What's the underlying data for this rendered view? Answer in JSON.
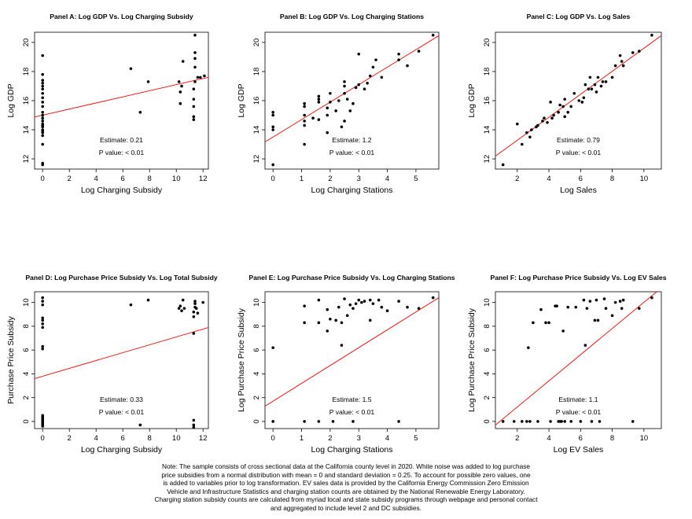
{
  "chart_data": [
    {
      "type": "scatter",
      "title": "Panel A: Log GDP Vs. Log Charging Subsidy",
      "xlabel": "Log Charging Subsidy",
      "ylabel": "Log GDP",
      "xlim": [
        -0.6,
        12.4
      ],
      "ylim": [
        11.3,
        20.7
      ],
      "xticks": [
        0,
        2,
        4,
        6,
        8,
        10,
        12
      ],
      "yticks": [
        12,
        14,
        16,
        18,
        20
      ],
      "estimate_label": "Estimate:  0.21",
      "pvalue_label": "P value: < 0.01",
      "line": {
        "intercept": 15.0,
        "slope": 0.21
      },
      "points": [
        [
          0,
          11.6
        ],
        [
          0,
          11.7
        ],
        [
          0,
          13.0
        ],
        [
          0,
          13.6
        ],
        [
          0,
          13.8
        ],
        [
          0,
          13.9
        ],
        [
          0,
          14.0
        ],
        [
          0,
          14.2
        ],
        [
          0,
          14.3
        ],
        [
          0,
          14.4
        ],
        [
          0,
          14.6
        ],
        [
          0,
          14.8
        ],
        [
          0,
          15.0
        ],
        [
          0,
          15.2
        ],
        [
          0,
          15.6
        ],
        [
          0,
          15.9
        ],
        [
          0,
          16.2
        ],
        [
          0,
          16.5
        ],
        [
          0,
          16.8
        ],
        [
          0,
          17.0
        ],
        [
          0,
          17.2
        ],
        [
          0,
          17.4
        ],
        [
          0,
          17.8
        ],
        [
          0,
          19.1
        ],
        [
          6.6,
          18.2
        ],
        [
          7.3,
          15.2
        ],
        [
          7.9,
          17.3
        ],
        [
          10.2,
          17.3
        ],
        [
          10.3,
          15.8
        ],
        [
          10.3,
          16.6
        ],
        [
          10.4,
          17.0
        ],
        [
          10.5,
          18.7
        ],
        [
          11.3,
          14.7
        ],
        [
          11.3,
          14.9
        ],
        [
          11.3,
          15.6
        ],
        [
          11.3,
          16.1
        ],
        [
          11.3,
          16.8
        ],
        [
          11.4,
          17.3
        ],
        [
          11.4,
          18.3
        ],
        [
          11.4,
          18.9
        ],
        [
          11.4,
          19.3
        ],
        [
          11.4,
          20.5
        ],
        [
          11.6,
          17.6
        ],
        [
          11.8,
          17.6
        ],
        [
          12.1,
          17.7
        ]
      ]
    },
    {
      "type": "scatter",
      "title": "Panel B: Log GDP Vs. Log Charging Stations",
      "xlabel": "Log Charging Stations",
      "ylabel": "Log GDP",
      "xlim": [
        -0.28,
        5.8
      ],
      "ylim": [
        11.3,
        20.7
      ],
      "xticks": [
        0,
        1,
        2,
        3,
        4,
        5
      ],
      "yticks": [
        12,
        14,
        16,
        18,
        20
      ],
      "estimate_label": "Estimate:  1.2",
      "pvalue_label": "P value: < 0.01",
      "line": {
        "intercept": 13.5,
        "slope": 1.2
      },
      "points": [
        [
          0,
          11.6
        ],
        [
          0,
          14.0
        ],
        [
          0,
          14.2
        ],
        [
          0,
          15.0
        ],
        [
          0,
          15.2
        ],
        [
          1.1,
          13.0
        ],
        [
          1.1,
          14.3
        ],
        [
          1.1,
          14.6
        ],
        [
          1.1,
          15.0
        ],
        [
          1.1,
          15.6
        ],
        [
          1.1,
          15.8
        ],
        [
          1.4,
          14.8
        ],
        [
          1.6,
          14.7
        ],
        [
          1.6,
          15.9
        ],
        [
          1.6,
          16.1
        ],
        [
          1.6,
          16.3
        ],
        [
          1.9,
          13.8
        ],
        [
          1.9,
          15.0
        ],
        [
          1.9,
          15.5
        ],
        [
          2.0,
          15.9
        ],
        [
          2.0,
          16.5
        ],
        [
          2.2,
          15.3
        ],
        [
          2.3,
          16.0
        ],
        [
          2.4,
          14.2
        ],
        [
          2.5,
          14.6
        ],
        [
          2.5,
          16.5
        ],
        [
          2.5,
          17.0
        ],
        [
          2.5,
          17.3
        ],
        [
          2.6,
          16.1
        ],
        [
          2.7,
          15.3
        ],
        [
          2.8,
          15.8
        ],
        [
          2.9,
          16.9
        ],
        [
          3.0,
          17.1
        ],
        [
          3.0,
          19.2
        ],
        [
          3.2,
          16.8
        ],
        [
          3.3,
          17.2
        ],
        [
          3.4,
          17.7
        ],
        [
          3.5,
          18.3
        ],
        [
          3.6,
          18.8
        ],
        [
          3.8,
          17.6
        ],
        [
          4.4,
          19.2
        ],
        [
          4.4,
          18.8
        ],
        [
          4.7,
          18.4
        ],
        [
          5.1,
          19.4
        ],
        [
          5.6,
          20.5
        ]
      ]
    },
    {
      "type": "scatter",
      "title": "Panel C: Log GDP Vs. Log Sales",
      "xlabel": "Log Sales",
      "ylabel": "Log GDP",
      "xlim": [
        0.62,
        11.1
      ],
      "ylim": [
        11.3,
        20.7
      ],
      "xticks": [
        2,
        4,
        6,
        8,
        10
      ],
      "yticks": [
        12,
        14,
        16,
        18,
        20
      ],
      "estimate_label": "Estimate:  0.79",
      "pvalue_label": "P value: < 0.01",
      "line": {
        "intercept": 11.7,
        "slope": 0.79
      },
      "points": [
        [
          1.1,
          11.6
        ],
        [
          2.0,
          14.4
        ],
        [
          2.3,
          13.0
        ],
        [
          2.6,
          13.8
        ],
        [
          2.8,
          13.5
        ],
        [
          2.9,
          14.0
        ],
        [
          3.2,
          14.2
        ],
        [
          3.3,
          14.3
        ],
        [
          3.6,
          14.6
        ],
        [
          3.7,
          14.8
        ],
        [
          3.9,
          14.5
        ],
        [
          4.1,
          15.9
        ],
        [
          4.2,
          14.8
        ],
        [
          4.3,
          15.0
        ],
        [
          4.6,
          15.2
        ],
        [
          4.7,
          15.7
        ],
        [
          4.9,
          15.6
        ],
        [
          5.0,
          14.9
        ],
        [
          5.0,
          16.1
        ],
        [
          5.2,
          15.2
        ],
        [
          5.4,
          15.6
        ],
        [
          5.6,
          16.5
        ],
        [
          5.9,
          16.0
        ],
        [
          6.1,
          15.9
        ],
        [
          6.2,
          16.2
        ],
        [
          6.3,
          17.1
        ],
        [
          6.5,
          16.8
        ],
        [
          6.6,
          17.6
        ],
        [
          6.7,
          16.8
        ],
        [
          6.9,
          17.1
        ],
        [
          7.0,
          16.6
        ],
        [
          7.1,
          17.6
        ],
        [
          7.3,
          17.0
        ],
        [
          7.4,
          17.3
        ],
        [
          7.6,
          17.3
        ],
        [
          8.0,
          17.6
        ],
        [
          8.2,
          18.4
        ],
        [
          8.5,
          19.1
        ],
        [
          8.6,
          18.7
        ],
        [
          8.7,
          18.4
        ],
        [
          9.3,
          19.3
        ],
        [
          9.7,
          19.4
        ],
        [
          10.5,
          20.5
        ]
      ]
    },
    {
      "type": "scatter",
      "title": "Panel D: Log Purchase Price Subsidy Vs. Log Total Subsidy",
      "xlabel": "Log Charging Subsidy",
      "ylabel": "Purchase Price Subsidy",
      "xlim": [
        -0.6,
        12.4
      ],
      "ylim": [
        -0.6,
        10.9
      ],
      "xticks": [
        0,
        2,
        4,
        6,
        8,
        10,
        12
      ],
      "yticks": [
        0,
        2,
        4,
        6,
        8,
        10
      ],
      "estimate_label": "Estimate:  0.33",
      "pvalue_label": "P value: < 0.01",
      "line": {
        "intercept": 3.8,
        "slope": 0.33
      },
      "points": [
        [
          0,
          -0.4
        ],
        [
          0,
          -0.3
        ],
        [
          0,
          -0.2
        ],
        [
          0,
          -0.1
        ],
        [
          0,
          0.0
        ],
        [
          0,
          0.1
        ],
        [
          0,
          0.2
        ],
        [
          0,
          0.3
        ],
        [
          0,
          0.4
        ],
        [
          0,
          0.5
        ],
        [
          0,
          6.1
        ],
        [
          0,
          6.3
        ],
        [
          0,
          7.9
        ],
        [
          0,
          8.2
        ],
        [
          0,
          8.5
        ],
        [
          0,
          8.7
        ],
        [
          0,
          9.8
        ],
        [
          0,
          10.1
        ],
        [
          0,
          10.4
        ],
        [
          6.6,
          9.8
        ],
        [
          7.3,
          -0.3
        ],
        [
          7.9,
          10.2
        ],
        [
          10.2,
          9.5
        ],
        [
          10.3,
          9.7
        ],
        [
          10.4,
          9.3
        ],
        [
          10.5,
          10.2
        ],
        [
          10.6,
          9.5
        ],
        [
          11.3,
          -0.5
        ],
        [
          11.3,
          -0.3
        ],
        [
          11.3,
          0.1
        ],
        [
          11.3,
          7.4
        ],
        [
          11.3,
          8.8
        ],
        [
          11.3,
          9.2
        ],
        [
          11.4,
          9.6
        ],
        [
          11.4,
          9.9
        ],
        [
          11.4,
          10.1
        ],
        [
          11.5,
          9.5
        ],
        [
          11.6,
          9.1
        ],
        [
          12.0,
          10.0
        ]
      ]
    },
    {
      "type": "scatter",
      "title": "Panel E: Log Purchase Price Subsidy Vs. Log Charging Stations",
      "xlabel": "Log Charging Stations",
      "ylabel": "Log Purchase Price Subsidy",
      "xlim": [
        -0.28,
        5.8
      ],
      "ylim": [
        -0.6,
        10.9
      ],
      "xticks": [
        0,
        1,
        2,
        3,
        4,
        5
      ],
      "yticks": [
        0,
        2,
        4,
        6,
        8,
        10
      ],
      "estimate_label": "Estimate:  1.5",
      "pvalue_label": "P value: < 0.01",
      "line": {
        "intercept": 1.7,
        "slope": 1.5
      },
      "points": [
        [
          0,
          0
        ],
        [
          0,
          6.2
        ],
        [
          1.1,
          0
        ],
        [
          1.1,
          8.3
        ],
        [
          1.1,
          9.7
        ],
        [
          1.6,
          0
        ],
        [
          1.6,
          8.3
        ],
        [
          1.6,
          10.2
        ],
        [
          1.9,
          7.6
        ],
        [
          1.9,
          9.4
        ],
        [
          2.0,
          8.6
        ],
        [
          2.1,
          0
        ],
        [
          2.2,
          8.5
        ],
        [
          2.3,
          9.6
        ],
        [
          2.4,
          6.4
        ],
        [
          2.4,
          8.3
        ],
        [
          2.5,
          10.3
        ],
        [
          2.6,
          8.9
        ],
        [
          2.7,
          9.8
        ],
        [
          2.8,
          0
        ],
        [
          2.8,
          9.5
        ],
        [
          2.9,
          9.9
        ],
        [
          3.0,
          10.2
        ],
        [
          3.1,
          10.0
        ],
        [
          3.2,
          10.1
        ],
        [
          3.4,
          8.5
        ],
        [
          3.4,
          10.2
        ],
        [
          3.5,
          9.9
        ],
        [
          3.7,
          10.2
        ],
        [
          3.8,
          9.6
        ],
        [
          4.0,
          9.3
        ],
        [
          4.4,
          10.1
        ],
        [
          4.4,
          0
        ],
        [
          4.7,
          9.6
        ],
        [
          5.1,
          9.5
        ],
        [
          5.6,
          10.4
        ]
      ]
    },
    {
      "type": "scatter",
      "title": "Panel F: Log Purchase Price Subsidy Vs. Log EV Sales",
      "xlabel": "Log EV Sales",
      "ylabel": "Log Purchase Price Subsidy",
      "xlim": [
        0.62,
        11.1
      ],
      "ylim": [
        -0.6,
        10.9
      ],
      "xticks": [
        2,
        4,
        6,
        8,
        10
      ],
      "yticks": [
        0,
        2,
        4,
        6,
        8,
        10
      ],
      "estimate_label": "Estimate:  1.1",
      "pvalue_label": "P value: < 0.01",
      "line": {
        "intercept": -0.99,
        "slope": 1.1
      },
      "points": [
        [
          1.1,
          0
        ],
        [
          1.8,
          0
        ],
        [
          2.3,
          0
        ],
        [
          2.6,
          0
        ],
        [
          2.7,
          6.2
        ],
        [
          2.8,
          0
        ],
        [
          3.0,
          8.3
        ],
        [
          3.3,
          0
        ],
        [
          3.5,
          9.4
        ],
        [
          3.8,
          8.3
        ],
        [
          4.0,
          8.3
        ],
        [
          4.1,
          0
        ],
        [
          4.4,
          9.7
        ],
        [
          4.5,
          9.7
        ],
        [
          4.6,
          0
        ],
        [
          4.7,
          0
        ],
        [
          4.8,
          0
        ],
        [
          4.9,
          7.6
        ],
        [
          5.0,
          0
        ],
        [
          5.2,
          9.6
        ],
        [
          5.4,
          0
        ],
        [
          5.7,
          9.6
        ],
        [
          6.0,
          0
        ],
        [
          6.2,
          10.2
        ],
        [
          6.3,
          6.4
        ],
        [
          6.4,
          9.5
        ],
        [
          6.6,
          10.1
        ],
        [
          6.7,
          0
        ],
        [
          6.9,
          8.5
        ],
        [
          7.0,
          10.2
        ],
        [
          7.1,
          8.5
        ],
        [
          7.2,
          0
        ],
        [
          7.5,
          10.3
        ],
        [
          7.6,
          9.5
        ],
        [
          8.0,
          8.9
        ],
        [
          8.2,
          10.0
        ],
        [
          8.5,
          10.1
        ],
        [
          8.6,
          9.5
        ],
        [
          8.7,
          10.2
        ],
        [
          9.3,
          0
        ],
        [
          9.7,
          9.5
        ],
        [
          10.5,
          10.4
        ]
      ]
    }
  ],
  "note": {
    "lines": [
      "Note: The sample consists of cross sectional data at the California county level in 2020.  White noise was added to log purchase",
      "price subsidies from a normal distribution with mean = 0 and standard deviation = 0.25.  To account for possible zero values, one",
      "is added to variables prior to log transformation.  EV sales data is provided by the California Energy Commission Zero Emission",
      "Vehicle and Infrastructure Statistics and charging station counts are obtained by the National Renewable Energy Laboratory.",
      "Charging station subsidy counts are calculated from myriad local and state subsidy programs through webpage and personal contact",
      "and aggregated to include level 2 and DC subsidies."
    ]
  },
  "colors": {
    "regression_line": "#ff0000",
    "points": "#000000",
    "axis": "#000000"
  }
}
